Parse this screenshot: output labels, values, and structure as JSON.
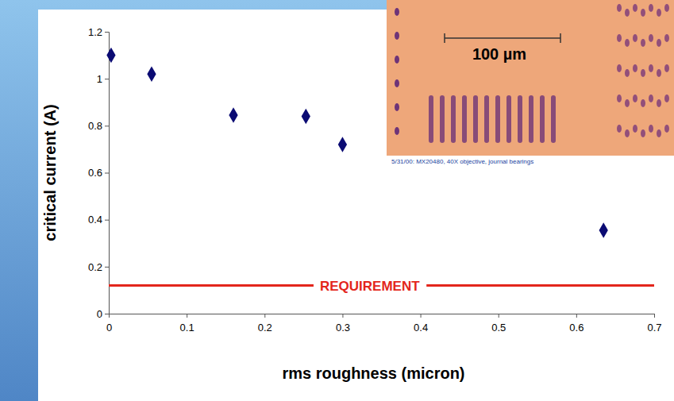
{
  "chart_data": {
    "type": "scatter",
    "x_label": "rms roughness (micron)",
    "y_label": "critical current (A)",
    "x": [
      0.003,
      0.055,
      0.16,
      0.253,
      0.3,
      0.635
    ],
    "values": [
      1.1,
      1.02,
      0.845,
      0.84,
      0.72,
      0.355
    ],
    "color": "#0b0b73",
    "marker": "diamond",
    "xlim": [
      0,
      0.7
    ],
    "xticks": [
      0,
      0.1,
      0.2,
      0.3,
      0.4,
      0.5,
      0.6,
      0.7
    ],
    "ylim": [
      0,
      1.2
    ],
    "yticks": [
      0,
      0.2,
      0.4,
      0.6,
      0.8,
      1,
      1.2
    ],
    "grid": false,
    "annotations": [
      {
        "text": "REQUIREMENT",
        "y": 0.12,
        "color": "#e3261c"
      },
      {
        "text": "100 µm"
      },
      {
        "text": "5/31/00: MX20480, 40X objective, journal bearings"
      }
    ]
  }
}
